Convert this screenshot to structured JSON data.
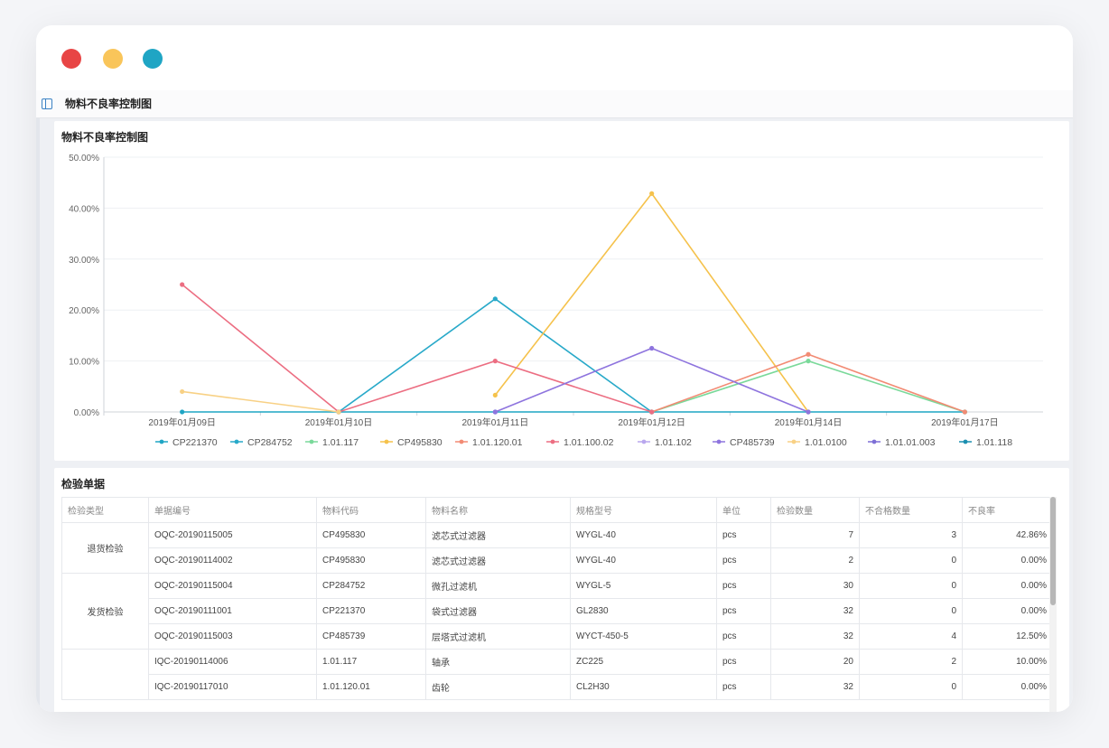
{
  "window": {
    "controls": [
      {
        "name": "close",
        "color": "#e84545"
      },
      {
        "name": "minimize",
        "color": "#f9c55a"
      },
      {
        "name": "maximize",
        "color": "#1fa5c4"
      }
    ]
  },
  "header": {
    "title": "物料不良率控制图",
    "toggle_icon": "sidebar-toggle-icon"
  },
  "chart_card": {
    "title": "物料不良率控制图"
  },
  "chart_data": {
    "type": "line",
    "title": "物料不良率控制图",
    "categories": [
      "2019年01月09日",
      "2019年01月10日",
      "2019年01月11日",
      "2019年01月12日",
      "2019年01月14日",
      "2019年01月17日"
    ],
    "ylim": [
      0,
      50
    ],
    "yticks": [
      "0.00%",
      "10.00%",
      "20.00%",
      "30.00%",
      "40.00%",
      "50.00%"
    ],
    "grid": true,
    "legend_position": "bottom",
    "series": [
      {
        "name": "CP221370",
        "color": "#1fa5c4",
        "values": [
          0,
          0,
          0,
          0,
          0,
          0
        ]
      },
      {
        "name": "CP284752",
        "color": "#28a9c9",
        "values": [
          null,
          0,
          22.2,
          0,
          null,
          null
        ]
      },
      {
        "name": "1.01.117",
        "color": "#7ad99a",
        "values": [
          null,
          null,
          null,
          0,
          10,
          0
        ]
      },
      {
        "name": "CP495830",
        "color": "#f5c24c",
        "values": [
          null,
          null,
          3.3,
          42.86,
          0,
          null
        ]
      },
      {
        "name": "1.01.120.01",
        "color": "#f28b74",
        "values": [
          null,
          null,
          null,
          0,
          11.3,
          0
        ]
      },
      {
        "name": "1.01.100.02",
        "color": "#ec6e82",
        "values": [
          25,
          0,
          10,
          0,
          null,
          null
        ]
      },
      {
        "name": "1.01.102",
        "color": "#b9a7ee",
        "values": [
          null,
          null,
          0,
          null,
          null,
          null
        ]
      },
      {
        "name": "CP485739",
        "color": "#8e74de",
        "values": [
          null,
          null,
          0,
          12.5,
          0,
          null
        ]
      },
      {
        "name": "1.01.0100",
        "color": "#f8d185",
        "values": [
          4,
          0,
          null,
          null,
          null,
          null
        ]
      },
      {
        "name": "1.01.01.003",
        "color": "#7e6fd6",
        "values": [
          null,
          null,
          null,
          null,
          null,
          null
        ]
      },
      {
        "name": "1.01.118",
        "color": "#1b8fb0",
        "values": [
          null,
          null,
          null,
          null,
          null,
          null
        ]
      }
    ]
  },
  "table_card": {
    "title": "检验单据",
    "columns": [
      "检验类型",
      "单据编号",
      "物料代码",
      "物料名称",
      "规格型号",
      "单位",
      "检验数量",
      "不合格数量",
      "不良率"
    ],
    "groups": [
      {
        "type": "退货检验",
        "rows": [
          [
            "OQC-20190115005",
            "CP495830",
            "滤芯式过滤器",
            "WYGL-40",
            "pcs",
            "7",
            "3",
            "42.86%"
          ],
          [
            "OQC-20190114002",
            "CP495830",
            "滤芯式过滤器",
            "WYGL-40",
            "pcs",
            "2",
            "0",
            "0.00%"
          ]
        ]
      },
      {
        "type": "发货检验",
        "rows": [
          [
            "OQC-20190115004",
            "CP284752",
            "微孔过滤机",
            "WYGL-5",
            "pcs",
            "30",
            "0",
            "0.00%"
          ],
          [
            "OQC-20190111001",
            "CP221370",
            "袋式过滤器",
            "GL2830",
            "pcs",
            "32",
            "0",
            "0.00%"
          ],
          [
            "OQC-20190115003",
            "CP485739",
            "层塔式过滤机",
            "WYCT-450-5",
            "pcs",
            "32",
            "4",
            "12.50%"
          ]
        ]
      },
      {
        "type": "",
        "rows": [
          [
            "IQC-20190114006",
            "1.01.117",
            "轴承",
            "ZC225",
            "pcs",
            "20",
            "2",
            "10.00%"
          ],
          [
            "IQC-20190117010",
            "1.01.120.01",
            "齿轮",
            "CL2H30",
            "pcs",
            "32",
            "0",
            "0.00%"
          ]
        ]
      }
    ]
  }
}
